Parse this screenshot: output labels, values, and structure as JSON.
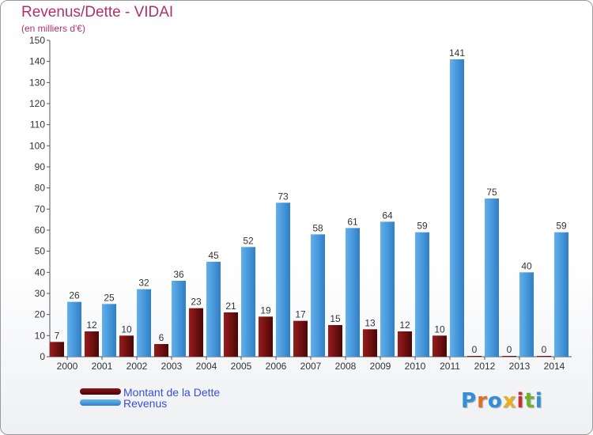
{
  "chart_data": {
    "type": "bar",
    "title": "Revenus/Dette - VIDAI",
    "subtitle": "(en milliers d'€)",
    "categories": [
      "2000",
      "2001",
      "2002",
      "2003",
      "2004",
      "2005",
      "2006",
      "2007",
      "2008",
      "2009",
      "2010",
      "2011",
      "2012",
      "2013",
      "2014"
    ],
    "series": [
      {
        "name": "Montant de la Dette",
        "color": "#7a1010",
        "values": [
          7,
          12,
          10,
          6,
          23,
          21,
          19,
          17,
          15,
          13,
          12,
          10,
          0,
          0,
          0
        ]
      },
      {
        "name": "Revenus",
        "color": "#4a9be0",
        "values": [
          26,
          25,
          32,
          36,
          45,
          52,
          73,
          58,
          61,
          64,
          59,
          141,
          75,
          40,
          59
        ]
      }
    ],
    "ylim": [
      0,
      150
    ],
    "yticks": [
      0,
      10,
      20,
      30,
      40,
      50,
      60,
      70,
      80,
      90,
      100,
      110,
      120,
      130,
      140,
      150
    ],
    "grid": false,
    "legend_position": "bottom-left"
  },
  "logo": {
    "text": "Proxiti"
  }
}
